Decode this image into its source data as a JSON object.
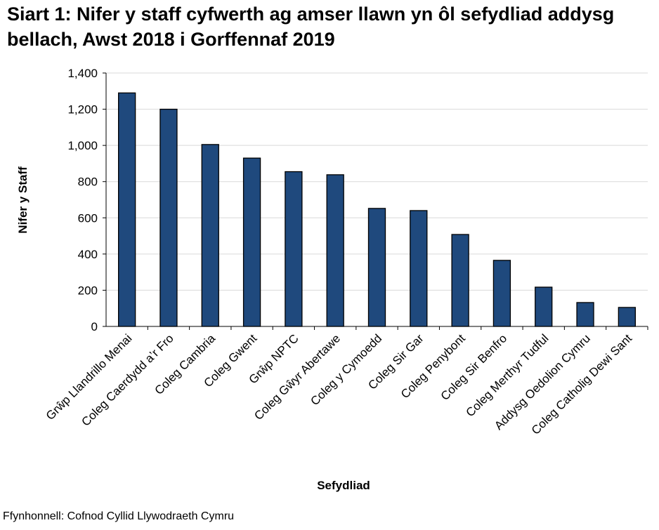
{
  "chart_data": {
    "type": "bar",
    "title": "Siart 1: Nifer y staff cyfwerth ag amser llawn yn ôl sefydliad addysg bellach, Awst 2018 i Gorffennaf 2019",
    "xlabel": "Sefydliad",
    "ylabel": "Nifer y Staff",
    "ylim": [
      0,
      1400
    ],
    "yticks": [
      0,
      200,
      400,
      600,
      800,
      1000,
      1200,
      1400
    ],
    "ytick_labels": [
      "0",
      "200",
      "400",
      "600",
      "800",
      "1,000",
      "1,200",
      "1,400"
    ],
    "grid": "horizontal",
    "bar_color": "#1F497D",
    "categories": [
      "Grŵp Llandrillo Menai",
      "Coleg Caerdydd a’r Fro",
      "Coleg Cambria",
      "Coleg Gwent",
      "Grŵp NPTC",
      "Coleg Gŵyr Abertawe",
      "Coleg y Cymoedd",
      "Coleg Sir Gar",
      "Coleg Penybont",
      "Coleg Sir Benfro",
      "Coleg Merthyr Tudful",
      "Addysg Oedolion Cymru",
      "Coleg Catholig Dewi Sant"
    ],
    "values": [
      1290,
      1200,
      1005,
      930,
      855,
      838,
      652,
      640,
      508,
      365,
      217,
      132,
      105
    ]
  },
  "source": "Ffynhonnell: Cofnod Cyllid Llywodraeth Cymru"
}
